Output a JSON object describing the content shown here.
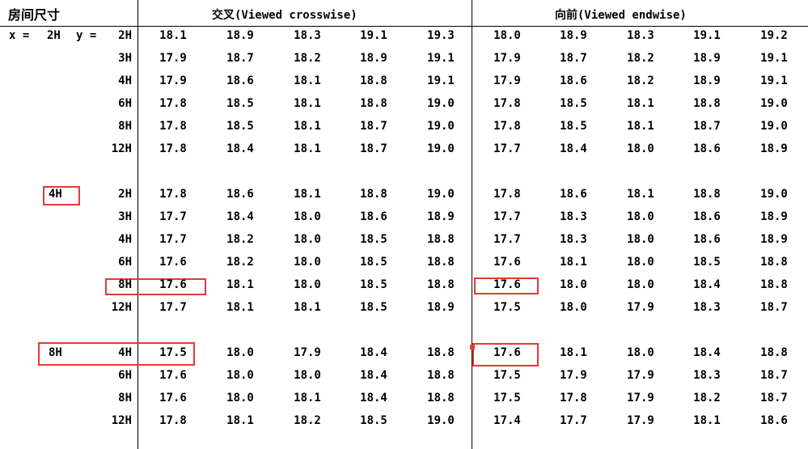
{
  "header": {
    "room_size": "房间尺寸",
    "crosswise": "交叉(Viewed crosswise)",
    "endwise": "向前(Viewed endwise)"
  },
  "x_prefix": "x =",
  "y_prefix": "y =",
  "groups": [
    {
      "x": "2H",
      "rows": [
        {
          "y": "2H",
          "cross": [
            "18.1",
            "18.9",
            "18.3",
            "19.1",
            "19.3"
          ],
          "end": [
            "18.0",
            "18.9",
            "18.3",
            "19.1",
            "19.2"
          ]
        },
        {
          "y": "3H",
          "cross": [
            "17.9",
            "18.7",
            "18.2",
            "18.9",
            "19.1"
          ],
          "end": [
            "17.9",
            "18.7",
            "18.2",
            "18.9",
            "19.1"
          ]
        },
        {
          "y": "4H",
          "cross": [
            "17.9",
            "18.6",
            "18.1",
            "18.8",
            "19.1"
          ],
          "end": [
            "17.9",
            "18.6",
            "18.2",
            "18.9",
            "19.1"
          ]
        },
        {
          "y": "6H",
          "cross": [
            "17.8",
            "18.5",
            "18.1",
            "18.8",
            "19.0"
          ],
          "end": [
            "17.8",
            "18.5",
            "18.1",
            "18.8",
            "19.0"
          ]
        },
        {
          "y": "8H",
          "cross": [
            "17.8",
            "18.5",
            "18.1",
            "18.7",
            "19.0"
          ],
          "end": [
            "17.8",
            "18.5",
            "18.1",
            "18.7",
            "19.0"
          ]
        },
        {
          "y": "12H",
          "cross": [
            "17.8",
            "18.4",
            "18.1",
            "18.7",
            "19.0"
          ],
          "end": [
            "17.7",
            "18.4",
            "18.0",
            "18.6",
            "18.9"
          ]
        }
      ]
    },
    {
      "x": "4H",
      "rows": [
        {
          "y": "2H",
          "cross": [
            "17.8",
            "18.6",
            "18.1",
            "18.8",
            "19.0"
          ],
          "end": [
            "17.8",
            "18.6",
            "18.1",
            "18.8",
            "19.0"
          ]
        },
        {
          "y": "3H",
          "cross": [
            "17.7",
            "18.4",
            "18.0",
            "18.6",
            "18.9"
          ],
          "end": [
            "17.7",
            "18.3",
            "18.0",
            "18.6",
            "18.9"
          ]
        },
        {
          "y": "4H",
          "cross": [
            "17.7",
            "18.2",
            "18.0",
            "18.5",
            "18.8"
          ],
          "end": [
            "17.7",
            "18.3",
            "18.0",
            "18.6",
            "18.9"
          ]
        },
        {
          "y": "6H",
          "cross": [
            "17.6",
            "18.2",
            "18.0",
            "18.5",
            "18.8"
          ],
          "end": [
            "17.6",
            "18.1",
            "18.0",
            "18.5",
            "18.8"
          ]
        },
        {
          "y": "8H",
          "cross": [
            "17.6",
            "18.1",
            "18.0",
            "18.5",
            "18.8"
          ],
          "end": [
            "17.6",
            "18.0",
            "18.0",
            "18.4",
            "18.8"
          ]
        },
        {
          "y": "12H",
          "cross": [
            "17.7",
            "18.1",
            "18.1",
            "18.5",
            "18.9"
          ],
          "end": [
            "17.5",
            "18.0",
            "17.9",
            "18.3",
            "18.7"
          ]
        }
      ]
    },
    {
      "x": "8H",
      "rows": [
        {
          "y": "4H",
          "cross": [
            "17.5",
            "18.0",
            "17.9",
            "18.4",
            "18.8"
          ],
          "end": [
            "17.6",
            "18.1",
            "18.0",
            "18.4",
            "18.8"
          ]
        },
        {
          "y": "6H",
          "cross": [
            "17.6",
            "18.0",
            "18.0",
            "18.4",
            "18.8"
          ],
          "end": [
            "17.5",
            "17.9",
            "17.9",
            "18.3",
            "18.7"
          ]
        },
        {
          "y": "8H",
          "cross": [
            "17.6",
            "18.0",
            "18.1",
            "18.4",
            "18.8"
          ],
          "end": [
            "17.5",
            "17.8",
            "17.9",
            "18.2",
            "18.7"
          ]
        },
        {
          "y": "12H",
          "cross": [
            "17.8",
            "18.1",
            "18.2",
            "18.5",
            "19.0"
          ],
          "end": [
            "17.4",
            "17.7",
            "17.9",
            "18.1",
            "18.6"
          ]
        }
      ]
    }
  ],
  "highlight_color": "#e53935"
}
